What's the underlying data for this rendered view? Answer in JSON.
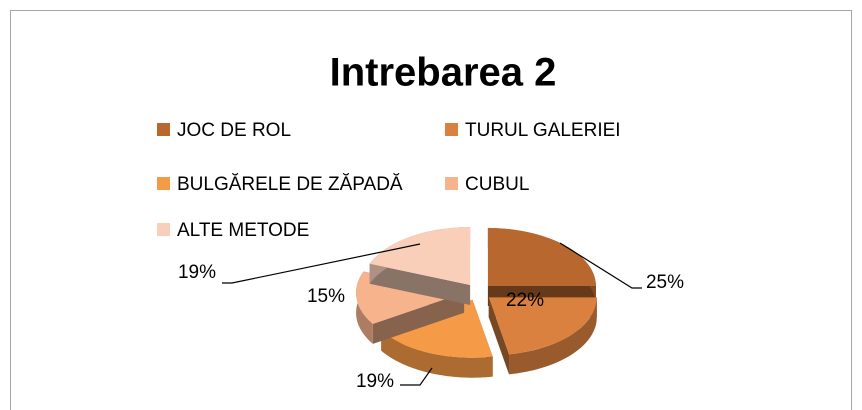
{
  "chart_data": {
    "type": "pie",
    "title": "Intrebarea 2",
    "categories": [
      "JOC DE ROL",
      "TURUL GALERIEI",
      "BULGĂRELE DE ZĂPADĂ",
      "CUBUL",
      "ALTE METODE"
    ],
    "values": [
      25,
      22,
      19,
      15,
      19
    ],
    "value_labels": [
      "25%",
      "22%",
      "19%",
      "15%",
      "19%"
    ],
    "colors": [
      "#b8682e",
      "#da8140",
      "#f59a46",
      "#f6b38c",
      "#f9cfb9"
    ]
  }
}
